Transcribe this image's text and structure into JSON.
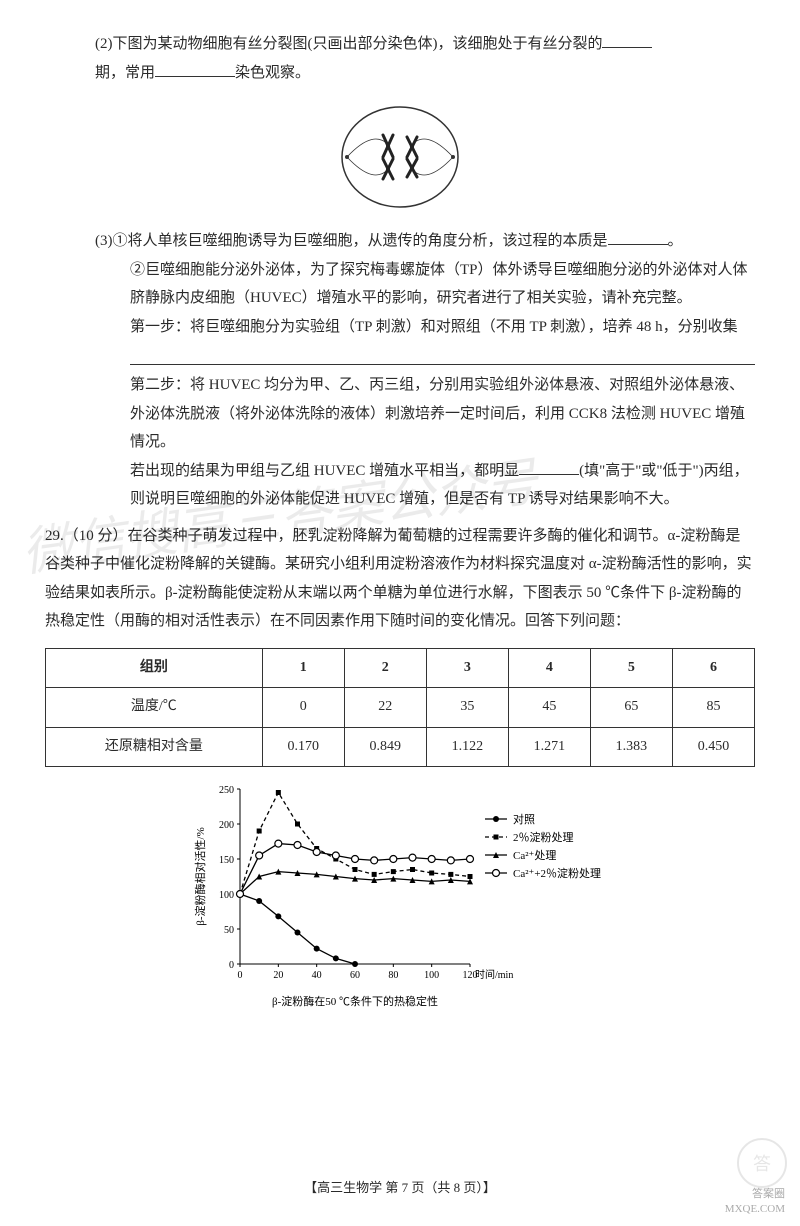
{
  "q28": {
    "part2": {
      "text_a": "(2)下图为某动物细胞有丝分裂图(只画出部分染色体)，该细胞处于有丝分裂的",
      "text_b": "期，常用",
      "text_c": "染色观察。"
    },
    "part3": {
      "line1_a": "(3)①将人单核巨噬细胞诱导为巨噬细胞，从遗传的角度分析，该过程的本质是",
      "line1_b": "。",
      "line2": "②巨噬细胞能分泌外泌体，为了探究梅毒螺旋体（TP）体外诱导巨噬细胞分泌的外泌体对人体脐静脉内皮细胞（HUVEC）增殖水平的影响，研究者进行了相关实验，请补充完整。",
      "step1_a": "第一步：将巨噬细胞分为实验组（TP 刺激）和对照组（不用 TP 刺激），培养 48 h，分别收集",
      "step1_b": "。",
      "step2": "第二步：将 HUVEC 均分为甲、乙、丙三组，分别用实验组外泌体悬液、对照组外泌体悬液、外泌体洗脱液（将外泌体洗除的液体）刺激培养一定时间后，利用 CCK8 法检测 HUVEC 增殖情况。",
      "result_a": "若出现的结果为甲组与乙组 HUVEC 增殖水平相当，都明显",
      "result_b": "(填\"高于\"或\"低于\")丙组，则说明巨噬细胞的外泌体能促进 HUVEC 增殖，但是否有 TP 诱导对结果影响不大。"
    }
  },
  "q29": {
    "intro": "29.（10 分）在谷类种子萌发过程中，胚乳淀粉降解为葡萄糖的过程需要许多酶的催化和调节。α-淀粉酶是谷类种子中催化淀粉降解的关键酶。某研究小组利用淀粉溶液作为材料探究温度对 α-淀粉酶活性的影响，实验结果如表所示。β-淀粉酶能使淀粉从末端以两个单糖为单位进行水解，下图表示 50 ℃条件下 β-淀粉酶的热稳定性（用酶的相对活性表示）在不同因素作用下随时间的变化情况。回答下列问题：",
    "table": {
      "headers": [
        "组别",
        "1",
        "2",
        "3",
        "4",
        "5",
        "6"
      ],
      "row1_label": "温度/℃",
      "row1": [
        "0",
        "22",
        "35",
        "45",
        "65",
        "85"
      ],
      "row2_label": "还原糖相对含量",
      "row2": [
        "0.170",
        "0.849",
        "1.122",
        "1.271",
        "1.383",
        "0.450"
      ]
    }
  },
  "chart": {
    "ylabel": "β-淀粉酶相对活性/%",
    "xlabel": "时间/min",
    "caption": "β-淀粉酶在50 ℃条件下的热稳定性",
    "ylim": [
      0,
      250
    ],
    "xlim": [
      0,
      120
    ],
    "yticks": [
      0,
      50,
      100,
      150,
      200,
      250
    ],
    "xticks": [
      0,
      20,
      40,
      60,
      80,
      100,
      120
    ],
    "legend": [
      "对照",
      "2％淀粉处理",
      "Ca²⁺处理",
      "Ca²⁺+2％淀粉处理"
    ],
    "series_markers": [
      "filled-circle",
      "filled-square",
      "filled-triangle",
      "open-circle"
    ],
    "series_styles": [
      "solid",
      "dashed",
      "solid",
      "solid"
    ],
    "series_color": "#000000",
    "background_color": "#ffffff",
    "series": {
      "control": {
        "x": [
          0,
          10,
          20,
          30,
          40,
          50,
          60
        ],
        "y": [
          100,
          90,
          68,
          45,
          22,
          8,
          0
        ]
      },
      "starch": {
        "x": [
          0,
          10,
          20,
          30,
          40,
          50,
          60,
          70,
          80,
          90,
          100,
          110,
          120
        ],
        "y": [
          100,
          190,
          245,
          200,
          165,
          150,
          135,
          128,
          132,
          135,
          130,
          128,
          125
        ]
      },
      "ca": {
        "x": [
          0,
          10,
          20,
          30,
          40,
          50,
          60,
          70,
          80,
          90,
          100,
          110,
          120
        ],
        "y": [
          100,
          125,
          132,
          130,
          128,
          125,
          122,
          120,
          122,
          120,
          118,
          120,
          118
        ]
      },
      "ca_starch": {
        "x": [
          0,
          10,
          20,
          30,
          40,
          50,
          60,
          70,
          80,
          90,
          100,
          110,
          120
        ],
        "y": [
          100,
          155,
          172,
          170,
          160,
          155,
          150,
          148,
          150,
          152,
          150,
          148,
          150
        ]
      }
    }
  },
  "footer": "【高三生物学  第 7 页（共 8 页）】",
  "watermark_lines": [
    "微信搜高三答案公众号"
  ],
  "corner_wm": [
    "答案圈",
    "MXQE.COM"
  ]
}
